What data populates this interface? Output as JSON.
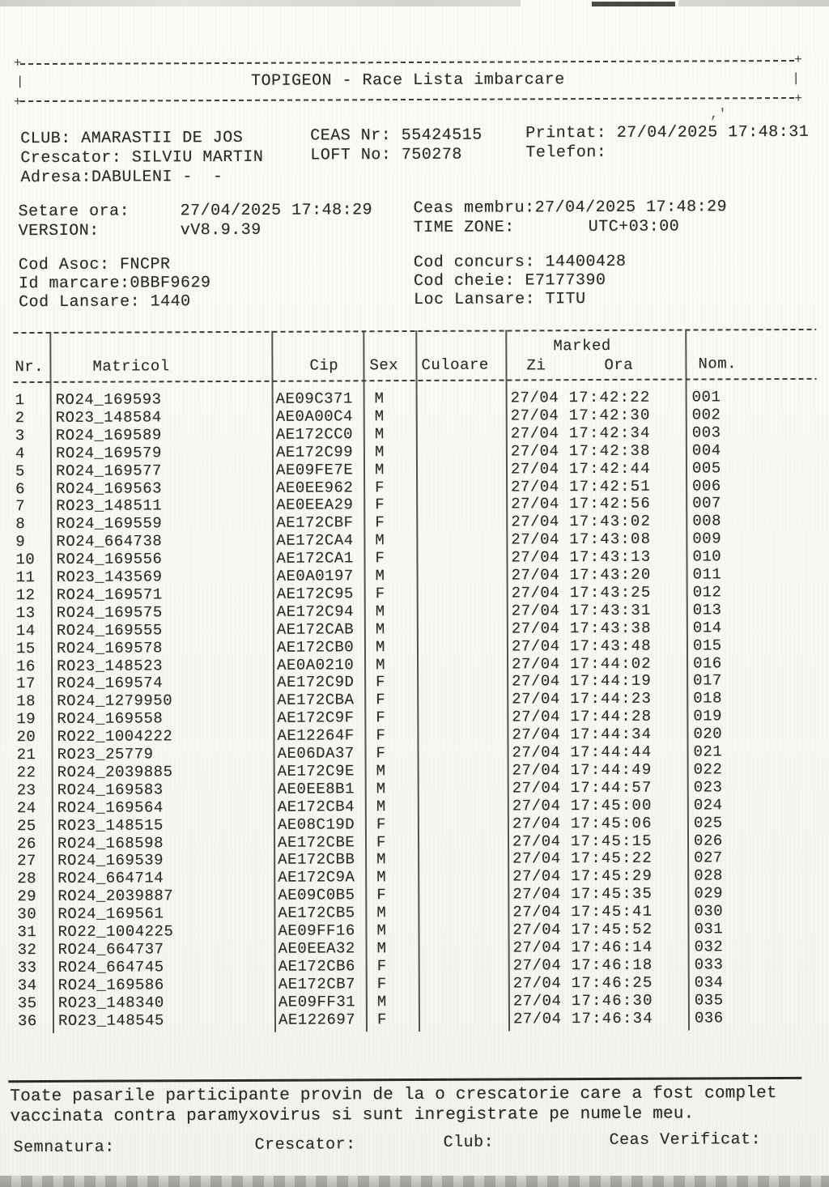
{
  "colors": {
    "ink": "#2b2a24",
    "paper": "#f8f7f3"
  },
  "doc": {
    "title": "TOPIGEON  -  Race Lista imbarcare",
    "info": {
      "club": "CLUB: AMARASTII DE JOS",
      "ceas_nr": "CEAS Nr: 55424515",
      "printat": "Printat: 27/04/2025 17:48:31",
      "crescator": "Crescator: SILVIU MARTIN",
      "loft_no": "LOFT No: 750278",
      "telefon": "Telefon:",
      "adresa": "Adresa:DABULENI -  -"
    },
    "settings": {
      "setare_label": "Setare ora:",
      "setare_value": "27/04/2025 17:48:29",
      "ceas_membru": "Ceas membru:27/04/2025 17:48:29",
      "version_label": "VERSION:",
      "version_value": "vV8.9.39",
      "timezone_label": "TIME ZONE:",
      "timezone_value": "UTC+03:00"
    },
    "codes": {
      "cod_asoc": "Cod Asoc: FNCPR",
      "cod_concurs": "Cod concurs: 14400428",
      "id_marcare": "Id marcare:0BBF9629",
      "cod_cheie": "Cod cheie: E7177390",
      "cod_lansare": "Cod Lansare: 1440",
      "loc_lansare": "Loc Lansare: TITU"
    },
    "table": {
      "headers": {
        "nr": "Nr.",
        "matricol": "Matricol",
        "cip": "Cip",
        "sex": "Sex",
        "culoare": "Culoare",
        "marked": "Marked",
        "zi": "Zi",
        "ora": "Ora",
        "nom": "Nom."
      },
      "rows": [
        {
          "nr": "1",
          "matricol": "RO24_169593",
          "cip": "AE09C371",
          "sex": "M",
          "culoare": "",
          "zi": "27/04",
          "ora": "17:42:22",
          "nom": "001"
        },
        {
          "nr": "2",
          "matricol": "RO23_148584",
          "cip": "AE0A00C4",
          "sex": "M",
          "culoare": "",
          "zi": "27/04",
          "ora": "17:42:30",
          "nom": "002"
        },
        {
          "nr": "3",
          "matricol": "RO24_169589",
          "cip": "AE172CC0",
          "sex": "M",
          "culoare": "",
          "zi": "27/04",
          "ora": "17:42:34",
          "nom": "003"
        },
        {
          "nr": "4",
          "matricol": "RO24_169579",
          "cip": "AE172C99",
          "sex": "M",
          "culoare": "",
          "zi": "27/04",
          "ora": "17:42:38",
          "nom": "004"
        },
        {
          "nr": "5",
          "matricol": "RO24_169577",
          "cip": "AE09FE7E",
          "sex": "M",
          "culoare": "",
          "zi": "27/04",
          "ora": "17:42:44",
          "nom": "005"
        },
        {
          "nr": "6",
          "matricol": "RO24_169563",
          "cip": "AE0EE962",
          "sex": "F",
          "culoare": "",
          "zi": "27/04",
          "ora": "17:42:51",
          "nom": "006"
        },
        {
          "nr": "7",
          "matricol": "RO23_148511",
          "cip": "AE0EEA29",
          "sex": "F",
          "culoare": "",
          "zi": "27/04",
          "ora": "17:42:56",
          "nom": "007"
        },
        {
          "nr": "8",
          "matricol": "RO24_169559",
          "cip": "AE172CBF",
          "sex": "F",
          "culoare": "",
          "zi": "27/04",
          "ora": "17:43:02",
          "nom": "008"
        },
        {
          "nr": "9",
          "matricol": "RO24_664738",
          "cip": "AE172CA4",
          "sex": "M",
          "culoare": "",
          "zi": "27/04",
          "ora": "17:43:08",
          "nom": "009"
        },
        {
          "nr": "10",
          "matricol": "RO24_169556",
          "cip": "AE172CA1",
          "sex": "F",
          "culoare": "",
          "zi": "27/04",
          "ora": "17:43:13",
          "nom": "010"
        },
        {
          "nr": "11",
          "matricol": "RO23_143569",
          "cip": "AE0A0197",
          "sex": "M",
          "culoare": "",
          "zi": "27/04",
          "ora": "17:43:20",
          "nom": "011"
        },
        {
          "nr": "12",
          "matricol": "RO24_169571",
          "cip": "AE172C95",
          "sex": "F",
          "culoare": "",
          "zi": "27/04",
          "ora": "17:43:25",
          "nom": "012"
        },
        {
          "nr": "13",
          "matricol": "RO24_169575",
          "cip": "AE172C94",
          "sex": "M",
          "culoare": "",
          "zi": "27/04",
          "ora": "17:43:31",
          "nom": "013"
        },
        {
          "nr": "14",
          "matricol": "RO24_169555",
          "cip": "AE172CAB",
          "sex": "M",
          "culoare": "",
          "zi": "27/04",
          "ora": "17:43:38",
          "nom": "014"
        },
        {
          "nr": "15",
          "matricol": "RO24_169578",
          "cip": "AE172CB0",
          "sex": "M",
          "culoare": "",
          "zi": "27/04",
          "ora": "17:43:48",
          "nom": "015"
        },
        {
          "nr": "16",
          "matricol": "RO23_148523",
          "cip": "AE0A0210",
          "sex": "M",
          "culoare": "",
          "zi": "27/04",
          "ora": "17:44:02",
          "nom": "016"
        },
        {
          "nr": "17",
          "matricol": "RO24_169574",
          "cip": "AE172C9D",
          "sex": "F",
          "culoare": "",
          "zi": "27/04",
          "ora": "17:44:19",
          "nom": "017"
        },
        {
          "nr": "18",
          "matricol": "RO24_1279950",
          "cip": "AE172CBA",
          "sex": "F",
          "culoare": "",
          "zi": "27/04",
          "ora": "17:44:23",
          "nom": "018"
        },
        {
          "nr": "19",
          "matricol": "RO24_169558",
          "cip": "AE172C9F",
          "sex": "F",
          "culoare": "",
          "zi": "27/04",
          "ora": "17:44:28",
          "nom": "019"
        },
        {
          "nr": "20",
          "matricol": "RO22_1004222",
          "cip": "AE12264F",
          "sex": "F",
          "culoare": "",
          "zi": "27/04",
          "ora": "17:44:34",
          "nom": "020"
        },
        {
          "nr": "21",
          "matricol": "RO23_25779",
          "cip": "AE06DA37",
          "sex": "F",
          "culoare": "",
          "zi": "27/04",
          "ora": "17:44:44",
          "nom": "021"
        },
        {
          "nr": "22",
          "matricol": "RO24_2039885",
          "cip": "AE172C9E",
          "sex": "M",
          "culoare": "",
          "zi": "27/04",
          "ora": "17:44:49",
          "nom": "022"
        },
        {
          "nr": "23",
          "matricol": "RO24_169583",
          "cip": "AE0EE8B1",
          "sex": "M",
          "culoare": "",
          "zi": "27/04",
          "ora": "17:44:57",
          "nom": "023"
        },
        {
          "nr": "24",
          "matricol": "RO24_169564",
          "cip": "AE172CB4",
          "sex": "M",
          "culoare": "",
          "zi": "27/04",
          "ora": "17:45:00",
          "nom": "024"
        },
        {
          "nr": "25",
          "matricol": "RO23_148515",
          "cip": "AE08C19D",
          "sex": "F",
          "culoare": "",
          "zi": "27/04",
          "ora": "17:45:06",
          "nom": "025"
        },
        {
          "nr": "26",
          "matricol": "RO24_168598",
          "cip": "AE172CBE",
          "sex": "F",
          "culoare": "",
          "zi": "27/04",
          "ora": "17:45:15",
          "nom": "026"
        },
        {
          "nr": "27",
          "matricol": "RO24_169539",
          "cip": "AE172CBB",
          "sex": "M",
          "culoare": "",
          "zi": "27/04",
          "ora": "17:45:22",
          "nom": "027"
        },
        {
          "nr": "28",
          "matricol": "RO24_664714",
          "cip": "AE172C9A",
          "sex": "M",
          "culoare": "",
          "zi": "27/04",
          "ora": "17:45:29",
          "nom": "028"
        },
        {
          "nr": "29",
          "matricol": "RO24_2039887",
          "cip": "AE09C0B5",
          "sex": "F",
          "culoare": "",
          "zi": "27/04",
          "ora": "17:45:35",
          "nom": "029"
        },
        {
          "nr": "30",
          "matricol": "RO24_169561",
          "cip": "AE172CB5",
          "sex": "M",
          "culoare": "",
          "zi": "27/04",
          "ora": "17:45:41",
          "nom": "030"
        },
        {
          "nr": "31",
          "matricol": "RO22_1004225",
          "cip": "AE09FF16",
          "sex": "M",
          "culoare": "",
          "zi": "27/04",
          "ora": "17:45:52",
          "nom": "031"
        },
        {
          "nr": "32",
          "matricol": "RO24_664737",
          "cip": "AE0EEA32",
          "sex": "M",
          "culoare": "",
          "zi": "27/04",
          "ora": "17:46:14",
          "nom": "032"
        },
        {
          "nr": "33",
          "matricol": "RO24_664745",
          "cip": "AE172CB6",
          "sex": "F",
          "culoare": "",
          "zi": "27/04",
          "ora": "17:46:18",
          "nom": "033"
        },
        {
          "nr": "34",
          "matricol": "RO24_169586",
          "cip": "AE172CB7",
          "sex": "F",
          "culoare": "",
          "zi": "27/04",
          "ora": "17:46:25",
          "nom": "034"
        },
        {
          "nr": "35",
          "matricol": "RO23_148340",
          "cip": "AE09FF31",
          "sex": "M",
          "culoare": "",
          "zi": "27/04",
          "ora": "17:46:30",
          "nom": "035"
        },
        {
          "nr": "36",
          "matricol": "RO23_148545",
          "cip": "AE122697",
          "sex": "F",
          "culoare": "",
          "zi": "27/04",
          "ora": "17:46:34",
          "nom": "036"
        }
      ]
    },
    "footer": {
      "declaration_line1": "Toate pasarile participante provin de la o crescatorie care a fost complet",
      "declaration_line2": "vaccinata contra paramyxovirus si sunt inregistrate pe numele meu.",
      "semnatura": "Semnatura:",
      "crescator": "Crescator:",
      "club": "Club:",
      "ceas_verificat": "Ceas Verificat:"
    }
  }
}
